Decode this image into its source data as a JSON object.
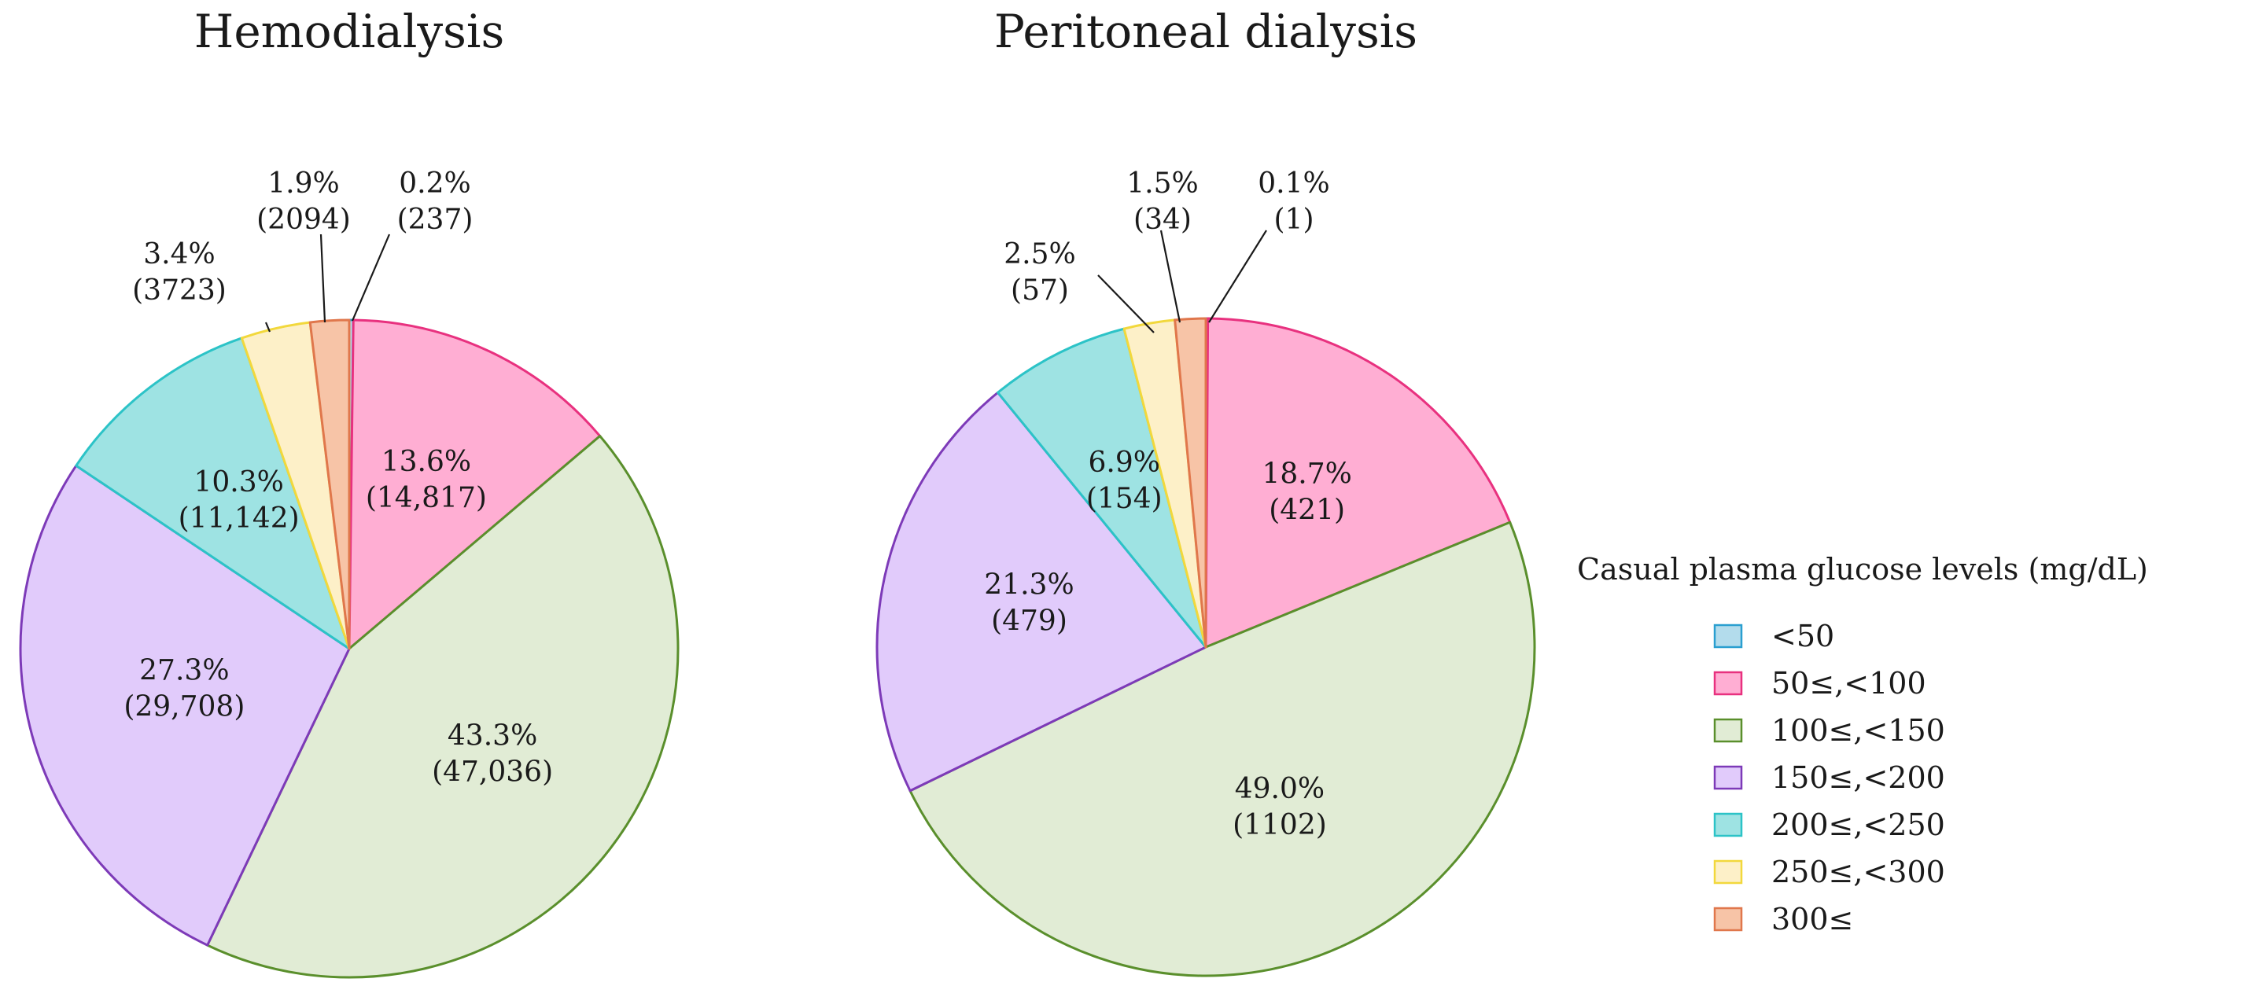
{
  "chart_data": [
    {
      "type": "pie",
      "title": "Hemodialysis",
      "categories": [
        "<50",
        "50≤,<100",
        "100≤,<150",
        "150≤,<200",
        "200≤,<250",
        "250≤,<300",
        "300≤"
      ],
      "values": [
        0.2,
        13.6,
        43.3,
        27.3,
        10.3,
        3.4,
        1.9
      ],
      "counts": [
        237,
        14817,
        47036,
        29708,
        11142,
        3723,
        2094
      ],
      "labels": [
        {
          "pct": "0.2%",
          "count": "(237)"
        },
        {
          "pct": "13.6%",
          "count": "(14,817)"
        },
        {
          "pct": "43.3%",
          "count": "(47,036)"
        },
        {
          "pct": "27.3%",
          "count": "(29,708)"
        },
        {
          "pct": "10.3%",
          "count": "(11,142)"
        },
        {
          "pct": "3.4%",
          "count": "(3723)"
        },
        {
          "pct": "1.9%",
          "count": "(2094)"
        }
      ]
    },
    {
      "type": "pie",
      "title": "Peritoneal dialysis",
      "categories": [
        "<50",
        "50≤,<100",
        "100≤,<150",
        "150≤,<200",
        "200≤,<250",
        "250≤,<300",
        "300≤"
      ],
      "values": [
        0.1,
        18.7,
        49.0,
        21.3,
        6.9,
        2.5,
        1.5
      ],
      "counts": [
        1,
        421,
        1102,
        479,
        154,
        57,
        34
      ],
      "labels": [
        {
          "pct": "0.1%",
          "count": "(1)"
        },
        {
          "pct": "18.7%",
          "count": "(421)"
        },
        {
          "pct": "49.0%",
          "count": "(1102)"
        },
        {
          "pct": "21.3%",
          "count": "(479)"
        },
        {
          "pct": "6.9%",
          "count": "(154)"
        },
        {
          "pct": "2.5%",
          "count": "(57)"
        },
        {
          "pct": "1.5%",
          "count": "(34)"
        }
      ]
    }
  ],
  "legend": {
    "title": "Casual plasma glucose levels (mg/dL)",
    "items": [
      {
        "label": "<50",
        "fill": "#b3dcec",
        "stroke": "#2a9fd0"
      },
      {
        "label": "50≤,<100",
        "fill": "#ffaed3",
        "stroke": "#e8317f"
      },
      {
        "label": "100≤,<150",
        "fill": "#e1ecd5",
        "stroke": "#5a8f2c"
      },
      {
        "label": "150≤,<200",
        "fill": "#e1cbfb",
        "stroke": "#7d3ab8"
      },
      {
        "label": "200≤,<250",
        "fill": "#9ee3e3",
        "stroke": "#2cc3c7"
      },
      {
        "label": "250≤,<300",
        "fill": "#fdf0c8",
        "stroke": "#f2d83c"
      },
      {
        "label": "300≤",
        "fill": "#f7c4a7",
        "stroke": "#e0774c"
      }
    ]
  }
}
